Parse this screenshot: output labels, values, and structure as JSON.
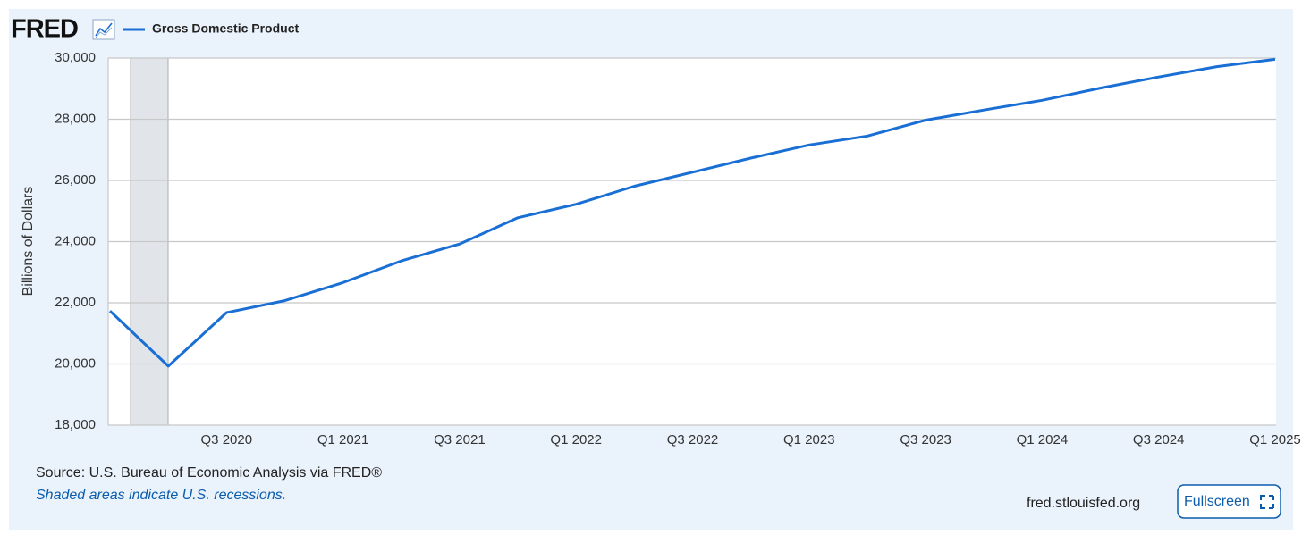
{
  "header": {
    "logo": "FRED"
  },
  "chart_data": {
    "type": "line",
    "ylabel": "Billions of Dollars",
    "categories": [
      null,
      null,
      "Q3 2020",
      null,
      "Q1 2021",
      null,
      "Q3 2021",
      null,
      "Q1 2022",
      null,
      "Q3 2022",
      null,
      "Q1 2023",
      null,
      "Q3 2023",
      null,
      "Q1 2024",
      null,
      "Q3 2024",
      null,
      "Q1 2025"
    ],
    "series": [
      {
        "name": "Gross Domestic Product",
        "color": "#1a6fd4",
        "values": [
          21730,
          19930,
          21680,
          22070,
          22660,
          23370,
          23920,
          24780,
          25220,
          25810,
          26270,
          26730,
          27160,
          27450,
          27970,
          28300,
          28620,
          29020,
          29380,
          29720,
          29960
        ]
      }
    ],
    "ylim": [
      18000,
      30000
    ],
    "yticks": [
      {
        "value": 18000,
        "label": "18,000"
      },
      {
        "value": 20000,
        "label": "20,000"
      },
      {
        "value": 22000,
        "label": "22,000"
      },
      {
        "value": 24000,
        "label": "24,000"
      },
      {
        "value": 26000,
        "label": "26,000"
      },
      {
        "value": 28000,
        "label": "28,000"
      },
      {
        "value": 30000,
        "label": "30,000"
      }
    ],
    "grid": true
  },
  "footer": {
    "source": "Source: U.S. Bureau of Economic Analysis via FRED®",
    "note": "Shaded areas indicate U.S. recessions.",
    "site": "fred.stlouisfed.org",
    "button": "Fullscreen"
  }
}
